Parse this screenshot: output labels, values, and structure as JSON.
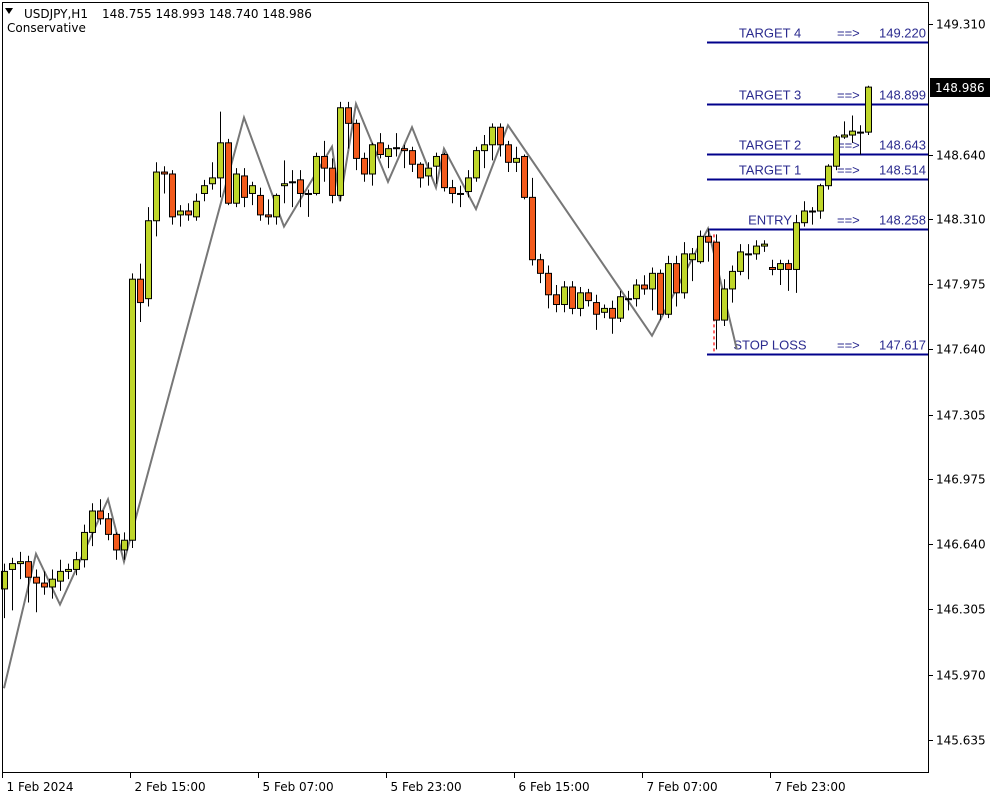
{
  "header": {
    "symbol": "USDJPY,H1",
    "ohlc": "148.755 148.993 148.740 148.986",
    "indicator": "Conservative"
  },
  "current_price_label": "148.986",
  "colors": {
    "bull": "#bfd62a",
    "bear": "#f25a1c",
    "outline": "#000000",
    "zigzag": "#777777",
    "level_line": "#00008b",
    "level_text": "#2b2b8f",
    "stop_marker": "#ff0000"
  },
  "chart_data": {
    "type": "candlestick",
    "symbol": "USDJPY",
    "timeframe": "H1",
    "ylim": [
      145.55,
      149.42
    ],
    "y_ticks": [
      "149.310",
      "148.640",
      "148.310",
      "147.975",
      "147.640",
      "147.305",
      "146.975",
      "146.640",
      "146.305",
      "145.970",
      "145.635"
    ],
    "x_ticks": [
      {
        "bar": 0,
        "label": "1 Feb 2024"
      },
      {
        "bar": 16,
        "label": "2 Feb 15:00"
      },
      {
        "bar": 32,
        "label": "5 Feb 07:00"
      },
      {
        "bar": 48,
        "label": "5 Feb 23:00"
      },
      {
        "bar": 64,
        "label": "6 Feb 15:00"
      },
      {
        "bar": 80,
        "label": "7 Feb 07:00"
      },
      {
        "bar": 96,
        "label": "7 Feb 23:00"
      }
    ],
    "candles_ohlc": [
      [
        146.41,
        146.54,
        146.26,
        146.5
      ],
      [
        146.51,
        146.57,
        146.3,
        146.54
      ],
      [
        146.54,
        146.6,
        146.46,
        146.55
      ],
      [
        146.55,
        146.58,
        146.34,
        146.47
      ],
      [
        146.47,
        146.51,
        146.29,
        146.44
      ],
      [
        146.44,
        146.5,
        146.38,
        146.42
      ],
      [
        146.42,
        146.51,
        146.36,
        146.46
      ],
      [
        146.45,
        146.56,
        146.4,
        146.5
      ],
      [
        146.5,
        146.54,
        146.46,
        146.51
      ],
      [
        146.51,
        146.6,
        146.48,
        146.56
      ],
      [
        146.56,
        146.74,
        146.52,
        146.7
      ],
      [
        146.7,
        146.85,
        146.63,
        146.81
      ],
      [
        146.81,
        146.87,
        146.74,
        146.77
      ],
      [
        146.77,
        146.8,
        146.66,
        146.69
      ],
      [
        146.69,
        146.7,
        146.56,
        146.61
      ],
      [
        146.61,
        146.7,
        146.56,
        146.66
      ],
      [
        146.66,
        148.03,
        146.62,
        148.0
      ],
      [
        148.0,
        148.08,
        147.78,
        147.88
      ],
      [
        147.9,
        148.37,
        147.86,
        148.3
      ],
      [
        148.3,
        148.6,
        148.22,
        148.55
      ],
      [
        148.55,
        148.58,
        148.44,
        148.54
      ],
      [
        148.54,
        148.56,
        148.28,
        148.32
      ],
      [
        148.33,
        148.38,
        148.27,
        148.35
      ],
      [
        148.35,
        148.39,
        148.3,
        148.33
      ],
      [
        148.32,
        148.44,
        148.3,
        148.4
      ],
      [
        148.44,
        148.51,
        148.4,
        148.48
      ],
      [
        148.49,
        148.6,
        148.46,
        148.52
      ],
      [
        148.52,
        148.86,
        148.42,
        148.7
      ],
      [
        148.7,
        148.72,
        148.38,
        148.39
      ],
      [
        148.39,
        148.57,
        148.37,
        148.54
      ],
      [
        148.53,
        148.57,
        148.37,
        148.42
      ],
      [
        148.44,
        148.5,
        148.38,
        148.48
      ],
      [
        148.43,
        148.47,
        148.3,
        148.33
      ],
      [
        148.33,
        148.41,
        148.28,
        148.32
      ],
      [
        148.32,
        148.44,
        148.28,
        148.43
      ],
      [
        148.48,
        148.61,
        148.39,
        148.49
      ],
      [
        148.5,
        148.56,
        148.37,
        148.5
      ],
      [
        148.51,
        148.56,
        148.37,
        148.44
      ],
      [
        148.44,
        148.46,
        148.32,
        148.44
      ],
      [
        148.44,
        148.65,
        148.43,
        148.63
      ],
      [
        148.63,
        148.71,
        148.5,
        148.57
      ],
      [
        148.57,
        148.62,
        148.39,
        148.43
      ],
      [
        148.43,
        148.91,
        148.4,
        148.88
      ],
      [
        148.88,
        148.91,
        148.67,
        148.8
      ],
      [
        148.8,
        148.82,
        148.56,
        148.62
      ],
      [
        148.62,
        148.65,
        148.5,
        148.54
      ],
      [
        148.54,
        148.7,
        148.48,
        148.69
      ],
      [
        148.7,
        148.75,
        148.62,
        148.64
      ],
      [
        148.63,
        148.69,
        148.57,
        148.67
      ],
      [
        148.67,
        148.75,
        148.63,
        148.675
      ],
      [
        148.67,
        148.69,
        148.57,
        148.66
      ],
      [
        148.66,
        148.68,
        148.55,
        148.59
      ],
      [
        148.59,
        148.6,
        148.47,
        148.52
      ],
      [
        148.53,
        148.6,
        148.48,
        148.57
      ],
      [
        148.58,
        148.65,
        148.49,
        148.63
      ],
      [
        148.64,
        148.65,
        148.45,
        148.47
      ],
      [
        148.47,
        148.51,
        148.39,
        148.44
      ],
      [
        148.44,
        148.48,
        148.37,
        148.44
      ],
      [
        148.45,
        148.56,
        148.42,
        148.52
      ],
      [
        148.52,
        148.68,
        148.5,
        148.66
      ],
      [
        148.66,
        148.74,
        148.57,
        148.69
      ],
      [
        148.69,
        148.8,
        148.61,
        148.78
      ],
      [
        148.78,
        148.8,
        148.63,
        148.69
      ],
      [
        148.69,
        148.71,
        148.55,
        148.6
      ],
      [
        148.6,
        148.68,
        148.55,
        148.62
      ],
      [
        148.63,
        148.64,
        148.41,
        148.42
      ],
      [
        148.42,
        148.52,
        148.07,
        148.1
      ],
      [
        148.1,
        148.13,
        147.98,
        148.03
      ],
      [
        148.03,
        148.07,
        147.85,
        147.92
      ],
      [
        147.92,
        147.97,
        147.83,
        147.87
      ],
      [
        147.87,
        147.99,
        147.83,
        147.96
      ],
      [
        147.96,
        147.99,
        147.82,
        147.85
      ],
      [
        147.85,
        147.96,
        147.81,
        147.93
      ],
      [
        147.93,
        147.95,
        147.86,
        147.89
      ],
      [
        147.88,
        147.92,
        147.74,
        147.82
      ],
      [
        147.83,
        147.87,
        147.8,
        147.85
      ],
      [
        147.85,
        147.89,
        147.72,
        147.8
      ],
      [
        147.8,
        147.94,
        147.78,
        147.91
      ],
      [
        147.9,
        147.94,
        147.84,
        147.9
      ],
      [
        147.9,
        148.0,
        147.86,
        147.97
      ],
      [
        147.97,
        148.02,
        147.92,
        147.95
      ],
      [
        147.95,
        148.06,
        147.84,
        148.03
      ],
      [
        148.03,
        148.05,
        147.79,
        147.82
      ],
      [
        147.82,
        148.12,
        147.8,
        148.08
      ],
      [
        148.08,
        148.12,
        147.86,
        147.93
      ],
      [
        147.93,
        148.19,
        147.9,
        148.13
      ],
      [
        148.1,
        148.16,
        147.99,
        148.13
      ],
      [
        148.09,
        148.25,
        148.08,
        148.22
      ],
      [
        148.22,
        148.26,
        148.09,
        148.19
      ],
      [
        148.19,
        148.23,
        147.64,
        147.79
      ],
      [
        147.79,
        148.0,
        147.76,
        147.95
      ],
      [
        147.95,
        148.07,
        147.88,
        148.04
      ],
      [
        148.04,
        148.18,
        148.02,
        148.14
      ],
      [
        148.13,
        148.18,
        148.0,
        148.13
      ],
      [
        148.13,
        148.2,
        148.1,
        148.17
      ],
      [
        148.17,
        148.2,
        148.14,
        148.18
      ],
      [
        148.06,
        148.1,
        148.02,
        148.05
      ],
      [
        148.05,
        148.1,
        147.97,
        148.08
      ],
      [
        148.08,
        148.1,
        147.94,
        148.05
      ],
      [
        148.05,
        148.33,
        147.93,
        148.29
      ],
      [
        148.29,
        148.4,
        148.27,
        148.35
      ],
      [
        148.35,
        148.37,
        148.28,
        148.35
      ],
      [
        148.35,
        148.49,
        148.31,
        148.48
      ],
      [
        148.48,
        148.59,
        148.46,
        148.58
      ],
      [
        148.58,
        148.74,
        148.56,
        148.73
      ],
      [
        148.73,
        148.81,
        148.72,
        148.74
      ],
      [
        148.74,
        148.84,
        148.7,
        148.76
      ],
      [
        148.75,
        148.79,
        148.64,
        148.755
      ],
      [
        148.755,
        148.993,
        148.74,
        148.986
      ]
    ],
    "zigzag": [
      [
        0,
        145.9
      ],
      [
        4,
        146.59
      ],
      [
        7,
        146.33
      ],
      [
        13,
        146.87
      ],
      [
        15,
        146.55
      ],
      [
        30,
        148.83
      ],
      [
        35,
        148.27
      ],
      [
        41,
        148.68
      ],
      [
        42,
        148.4
      ],
      [
        44,
        148.9
      ],
      [
        48,
        148.5
      ],
      [
        51,
        148.78
      ],
      [
        54,
        148.47
      ],
      [
        55,
        148.67
      ],
      [
        59,
        148.36
      ],
      [
        63,
        148.79
      ],
      [
        81,
        147.71
      ],
      [
        88,
        148.26
      ],
      [
        91.6,
        147.64
      ]
    ],
    "levels": [
      {
        "name": "TARGET 4",
        "arrow": "==>",
        "value": "149.220",
        "price": 149.22
      },
      {
        "name": "TARGET 3",
        "arrow": "==>",
        "value": "148.899",
        "price": 148.899
      },
      {
        "name": "TARGET 2",
        "arrow": "==>",
        "value": "148.643",
        "price": 148.643
      },
      {
        "name": "TARGET 1",
        "arrow": "==>",
        "value": "148.514",
        "price": 148.514
      },
      {
        "name": "ENTRY",
        "arrow": "==>",
        "value": "148.258",
        "price": 148.258
      },
      {
        "name": "STOP LOSS",
        "arrow": "==>",
        "value": "147.617",
        "price": 147.617
      }
    ],
    "levels_start_bar": 88,
    "stop_marker": {
      "bar": 88.75,
      "from": 148.23,
      "to": 147.617
    },
    "current_price": 148.986
  }
}
